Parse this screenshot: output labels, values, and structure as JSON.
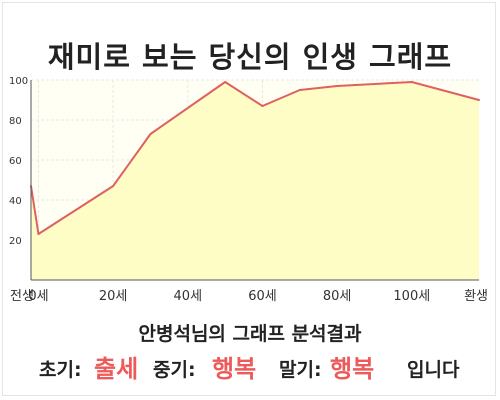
{
  "page": {
    "title": "재미로 보는 당신의 인생 그래프",
    "result_title": "안병석님의 그래프 분석결과",
    "result": {
      "early_label": "초기:",
      "early_value": "출세",
      "mid_label": "중기:",
      "mid_value": "행복",
      "late_label": "말기:",
      "late_value": "행복",
      "ending": "입니다"
    }
  },
  "colors": {
    "line": "#e0605f",
    "fill": "#fffdc6",
    "plot_bg": "#fffff4",
    "grid": "#e8e8e8",
    "axis": "#555555",
    "tick_text": "#333333",
    "highlight": "#ec5a5a"
  },
  "chart_data": {
    "type": "area",
    "title": "",
    "xlabel": "",
    "ylabel": "",
    "ylim": [
      0,
      100
    ],
    "xlim": [
      -2,
      118
    ],
    "yticks": [
      20,
      40,
      60,
      80,
      100
    ],
    "x_ticks": [
      {
        "x": -2,
        "label": "전생"
      },
      {
        "x": 0,
        "label": "0세"
      },
      {
        "x": 20,
        "label": "20세"
      },
      {
        "x": 40,
        "label": "40세"
      },
      {
        "x": 60,
        "label": "60세"
      },
      {
        "x": 80,
        "label": "80세"
      },
      {
        "x": 100,
        "label": "100세"
      },
      {
        "x": 118,
        "label": "환생"
      }
    ],
    "grid": true,
    "legend": "none",
    "series": [
      {
        "points": [
          {
            "x": -2,
            "y": 47
          },
          {
            "x": 0,
            "y": 23
          },
          {
            "x": 20,
            "y": 47
          },
          {
            "x": 30,
            "y": 73
          },
          {
            "x": 50,
            "y": 99
          },
          {
            "x": 60,
            "y": 87
          },
          {
            "x": 70,
            "y": 95
          },
          {
            "x": 80,
            "y": 97
          },
          {
            "x": 100,
            "y": 99
          },
          {
            "x": 118,
            "y": 90
          }
        ]
      }
    ]
  }
}
